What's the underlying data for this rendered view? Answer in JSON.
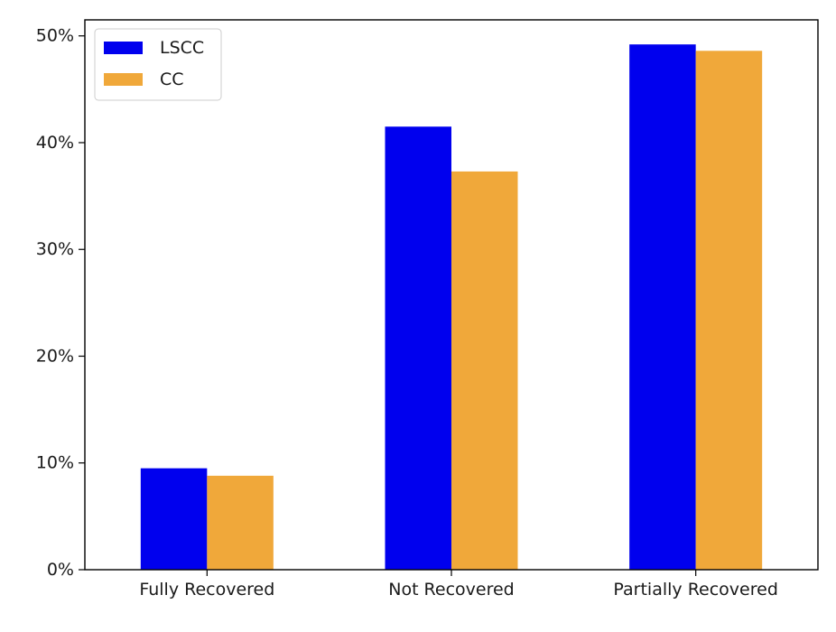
{
  "chart_data": {
    "type": "bar",
    "title": "",
    "xlabel": "",
    "ylabel": "",
    "categories": [
      "Fully Recovered",
      "Not Recovered",
      "Partially Recovered"
    ],
    "series": [
      {
        "name": "LSCC",
        "color": "#0000ee",
        "values": [
          9.5,
          41.5,
          49.2
        ]
      },
      {
        "name": "CC",
        "color": "#f0a83a",
        "values": [
          8.8,
          37.3,
          48.6
        ]
      }
    ],
    "ylim": [
      0,
      51.5
    ],
    "yticks": [
      0,
      10,
      20,
      30,
      40,
      50
    ],
    "ytick_labels": [
      "0%",
      "10%",
      "20%",
      "30%",
      "40%",
      "50%"
    ],
    "grid": false,
    "legend_position": "upper left"
  }
}
